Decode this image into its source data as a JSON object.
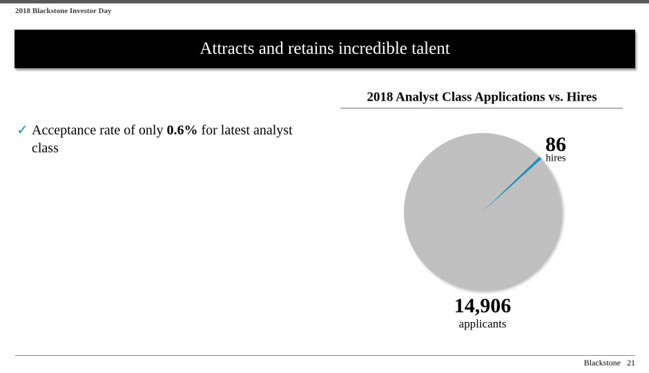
{
  "header": {
    "event": "2018 Blackstone Investor Day",
    "title": "Attracts and retains incredible talent"
  },
  "bullet": {
    "before": "Acceptance rate of only ",
    "highlight": "0.6%",
    "after": " for latest analyst class"
  },
  "chart_data": {
    "type": "pie",
    "title": "2018 Analyst Class Applications vs. Hires",
    "categories": [
      "hires",
      "applicants"
    ],
    "values": [
      86,
      14906
    ],
    "value_labels": [
      "86",
      "14,906"
    ],
    "colors": [
      "#1b8fc0",
      "#c0c0c0"
    ]
  },
  "footer": {
    "brand": "Blackstone",
    "page": "21"
  }
}
